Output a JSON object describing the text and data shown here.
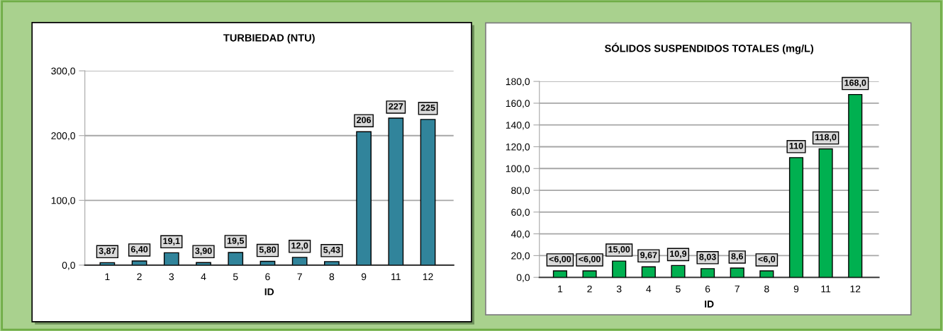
{
  "chart_data": [
    {
      "type": "bar",
      "title": "TURBIEDAD (NTU)",
      "xlabel": "ID",
      "categories": [
        "1",
        "2",
        "3",
        "4",
        "5",
        "6",
        "7",
        "8",
        "9",
        "11",
        "12"
      ],
      "values": [
        3.87,
        6.4,
        19.1,
        3.9,
        19.5,
        5.8,
        12.0,
        5.43,
        206,
        227,
        225
      ],
      "color": "#31849b",
      "value_labels": [
        "3,87",
        "6,40",
        "19,1",
        "3,90",
        "19,5",
        "5,80",
        "12,0",
        "5,43",
        "206",
        "227",
        "225"
      ],
      "ylim": [
        0,
        300
      ],
      "yticks": [
        {
          "value": 0,
          "label": "0,0"
        },
        {
          "value": 100,
          "label": "100,0"
        },
        {
          "value": 200,
          "label": "200,0"
        },
        {
          "value": 300,
          "label": "300,0"
        }
      ],
      "grid": "y"
    },
    {
      "type": "bar",
      "title": "SÓLIDOS SUSPENDIDOS TOTALES (mg/L)",
      "xlabel": "ID",
      "categories": [
        "1",
        "2",
        "3",
        "4",
        "5",
        "6",
        "7",
        "8",
        "9",
        "11",
        "12"
      ],
      "values": [
        6,
        6,
        15.0,
        9.67,
        10.9,
        8.03,
        8.6,
        6,
        110,
        118.0,
        168.0
      ],
      "color": "#00b050",
      "value_labels": [
        "<6,00",
        "<6,00",
        "15,00",
        "9,67",
        "10,9",
        "8,03",
        "8,6",
        "<6,0",
        "110",
        "118,0",
        "168,0"
      ],
      "ylim": [
        0,
        180
      ],
      "yticks": [
        {
          "value": 0,
          "label": "0,0"
        },
        {
          "value": 20,
          "label": "20,0"
        },
        {
          "value": 40,
          "label": "40,0"
        },
        {
          "value": 60,
          "label": "60,0"
        },
        {
          "value": 80,
          "label": "80,0"
        },
        {
          "value": 100,
          "label": "100,0"
        },
        {
          "value": 120,
          "label": "120,0"
        },
        {
          "value": 140,
          "label": "140,0"
        },
        {
          "value": 160,
          "label": "160,0"
        },
        {
          "value": 180,
          "label": "180,0"
        }
      ],
      "grid": "y"
    }
  ]
}
